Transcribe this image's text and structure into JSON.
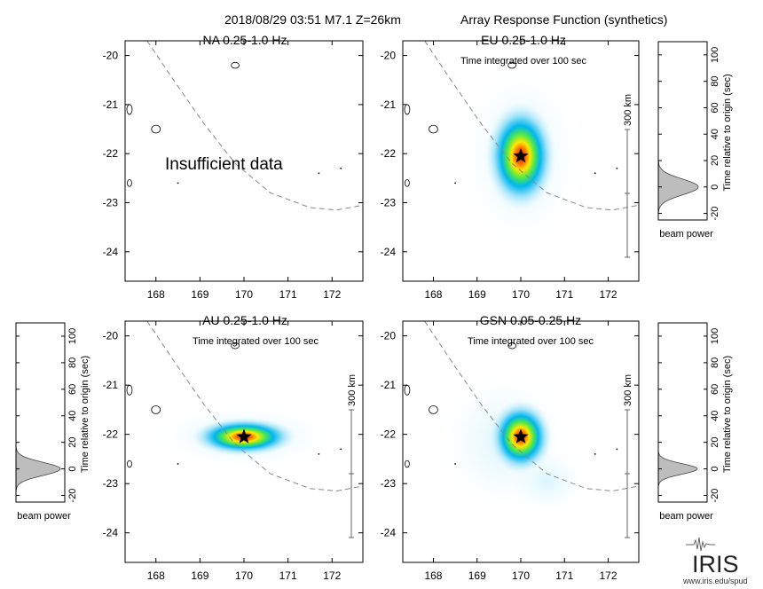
{
  "header": {
    "event": "2018/08/29 03:51  M7.1  Z=26km",
    "product": "Array Response Function (synthetics)"
  },
  "map_ticks": {
    "lon": [
      "168",
      "169",
      "170",
      "171",
      "172"
    ],
    "lat": [
      "-20",
      "-21",
      "-22",
      "-23",
      "-24"
    ]
  },
  "panels": [
    {
      "id": "na",
      "title": "NA  0.25-1.0 Hz",
      "subtitle": "",
      "note": "Insufficient data",
      "scale_label": ""
    },
    {
      "id": "eu",
      "title": "EU  0.25-1.0 Hz",
      "subtitle": "Time integrated over 100 sec",
      "note": "",
      "scale_label": "300 km"
    },
    {
      "id": "au",
      "title": "AU  0.25-1.0 Hz",
      "subtitle": "Time integrated over 100 sec",
      "note": "",
      "scale_label": "300 km"
    },
    {
      "id": "gsn",
      "title": "GSN  0.05-0.25 Hz",
      "subtitle": "Time integrated over 100 sec",
      "note": "",
      "scale_label": "300 km"
    }
  ],
  "beam_plots": {
    "ylabel": "Time relative to origin (sec)",
    "xlabel": "beam power",
    "ticks": [
      "-20",
      "0",
      "20",
      "40",
      "60",
      "80",
      "100"
    ]
  },
  "logo": {
    "name": "IRIS",
    "url": "www.iris.edu/spud"
  },
  "chart_data": [
    {
      "type": "heatmap",
      "panel": "NA",
      "title": "NA  0.25-1.0 Hz",
      "xlim": [
        167.3,
        172.7
      ],
      "ylim": [
        -24.6,
        -19.7
      ],
      "peak": null
    },
    {
      "type": "heatmap",
      "panel": "EU",
      "title": "EU  0.25-1.0 Hz",
      "xlim": [
        167.3,
        172.7
      ],
      "ylim": [
        -24.6,
        -19.7
      ],
      "peak": {
        "lon": 170.0,
        "lat": -22.05
      },
      "spread_lon": 0.25,
      "spread_lat": 0.35
    },
    {
      "type": "heatmap",
      "panel": "AU",
      "title": "AU  0.25-1.0 Hz",
      "xlim": [
        167.3,
        172.7
      ],
      "ylim": [
        -24.6,
        -19.7
      ],
      "peak": {
        "lon": 170.0,
        "lat": -22.05
      },
      "spread_lon": 0.45,
      "spread_lat": 0.15
    },
    {
      "type": "heatmap",
      "panel": "GSN",
      "title": "GSN  0.05-0.25 Hz",
      "xlim": [
        167.3,
        172.7
      ],
      "ylim": [
        -24.6,
        -19.7
      ],
      "peak": {
        "lon": 170.0,
        "lat": -22.05
      },
      "spread_lon": 0.22,
      "spread_lat": 0.28
    },
    {
      "type": "area",
      "panel": "EU beam",
      "ylabel": "Time relative to origin (sec)",
      "xlabel": "beam power",
      "ylim": [
        -25,
        110
      ],
      "peak_time": 0,
      "peak_width": 6
    },
    {
      "type": "area",
      "panel": "AU beam",
      "ylabel": "Time relative to origin (sec)",
      "xlabel": "beam power",
      "ylim": [
        -25,
        110
      ],
      "peak_time": 0,
      "peak_width": 5
    },
    {
      "type": "area",
      "panel": "GSN beam",
      "ylabel": "Time relative to origin (sec)",
      "xlabel": "beam power",
      "ylim": [
        -25,
        110
      ],
      "peak_time": 0,
      "peak_width": 4
    }
  ]
}
